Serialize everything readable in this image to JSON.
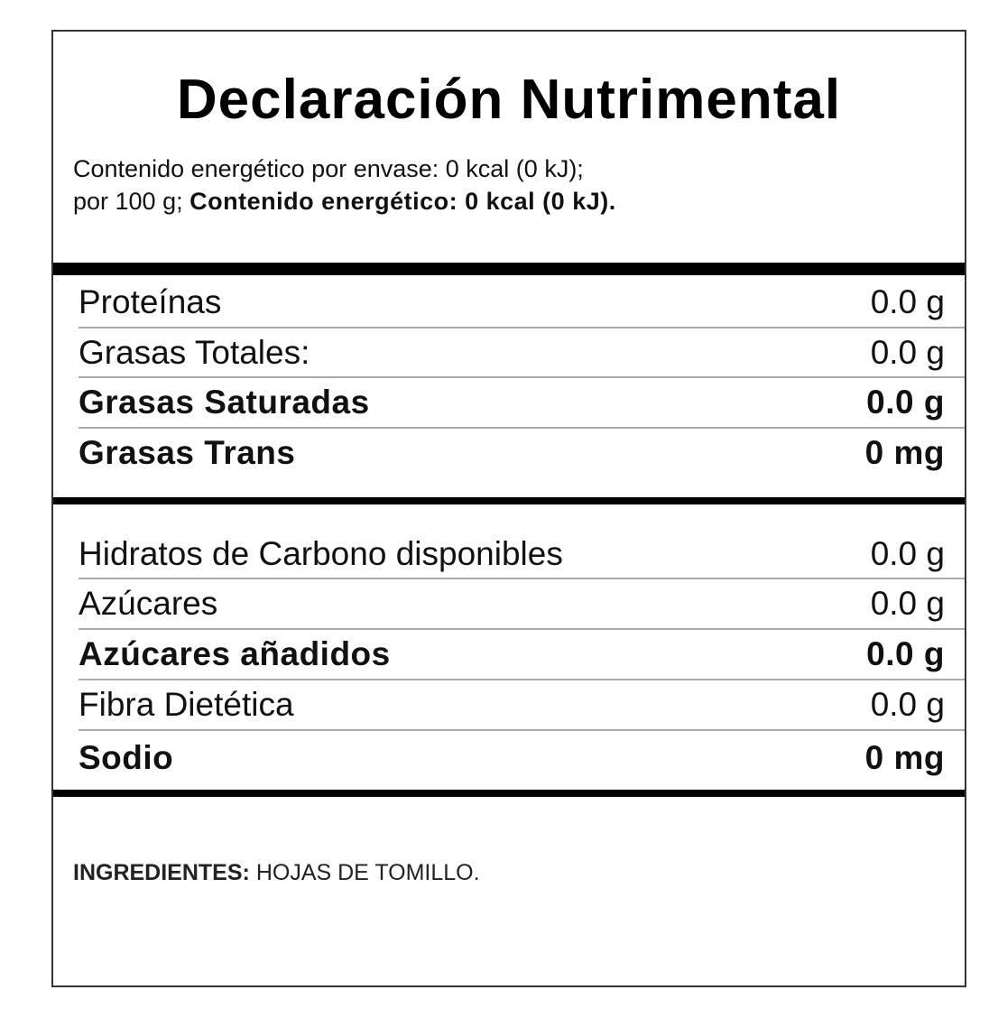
{
  "title": "Declaración Nutrimental",
  "energy": {
    "line1": "Contenido energético por envase: 0 kcal (0 kJ);",
    "line2_prefix": "por 100 g;",
    "line2_bold": "Contenido energético: 0 kcal (0 kJ)."
  },
  "group1": [
    {
      "label": "Proteínas",
      "value": "0.0 g",
      "bold": false
    },
    {
      "label": "Grasas Totales:",
      "value": "0.0 g",
      "bold": false
    },
    {
      "label": "Grasas Saturadas",
      "value": "0.0 g",
      "bold": true
    },
    {
      "label": "Grasas Trans",
      "value": "0 mg",
      "bold": true
    }
  ],
  "group2": [
    {
      "label": "Hidratos de Carbono disponibles",
      "value": "0.0 g",
      "bold": false
    },
    {
      "label": "Azúcares",
      "value": "0.0 g",
      "bold": false
    },
    {
      "label": "Azúcares añadidos",
      "value": "0.0 g",
      "bold": true
    },
    {
      "label": "Fibra Dietética",
      "value": "0.0 g",
      "bold": false
    },
    {
      "label": "Sodio",
      "value": "0 mg",
      "bold": true
    }
  ],
  "ingredients": {
    "label": "INGREDIENTES:",
    "text": "HOJAS DE TOMILLO."
  }
}
